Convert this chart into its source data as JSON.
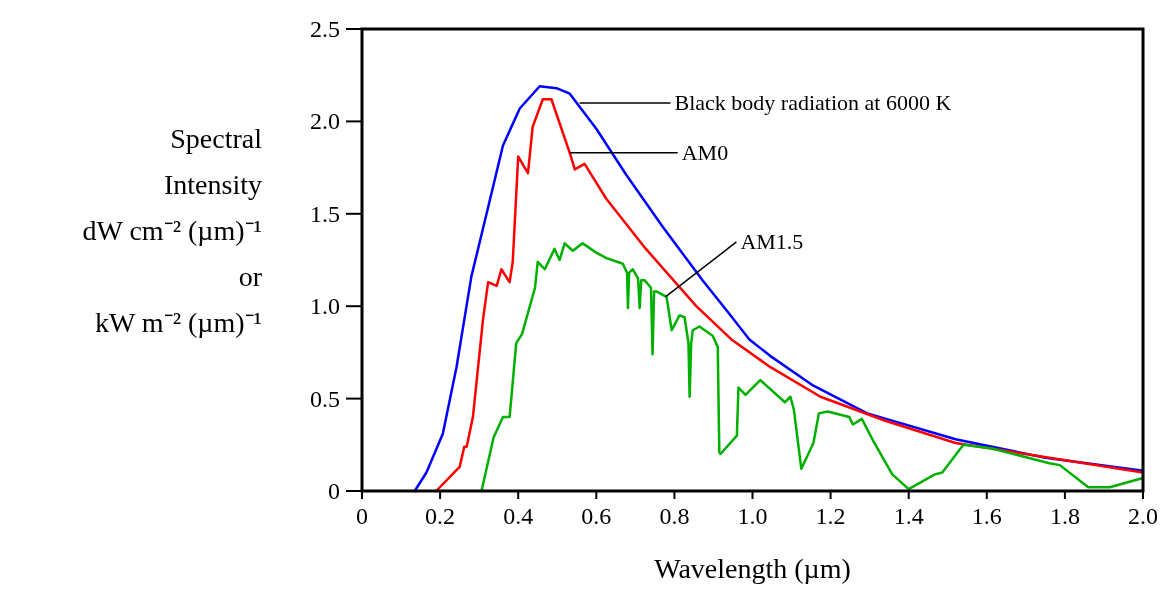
{
  "chart_data": {
    "type": "line",
    "xlabel": "Wavelength (µm)",
    "ylabel": "Spectral\nIntensity\ndW cm⁻² (µm)⁻¹\nor\nkW m⁻² (µm)⁻¹",
    "xlim": [
      0,
      2.0
    ],
    "xticks": [
      0,
      0.2,
      0.4,
      0.6,
      0.8,
      {
        "value": 1,
        "label": "1.0"
      },
      1.2,
      1.4,
      1.6,
      1.8,
      {
        "value": 2,
        "label": "2.0"
      }
    ],
    "ylim": [
      0,
      2.5
    ],
    "yticks": [
      0,
      0.5,
      {
        "value": 1,
        "label": "1.0"
      },
      1.5,
      {
        "value": 2,
        "label": "2.0"
      },
      2.5
    ],
    "grid": false,
    "marker": "none",
    "line_style": "solid",
    "series": [
      {
        "color": "#0000ff",
        "x": [
          0.135,
          0.165,
          0.207,
          0.242,
          0.28,
          0.319,
          0.361,
          0.404,
          0.455,
          0.498,
          0.532,
          0.6,
          0.677,
          0.77,
          0.872,
          0.94,
          0.992,
          1.046,
          1.156,
          1.294,
          1.52,
          1.75,
          2.0
        ],
        "values": [
          0,
          0.1,
          0.31,
          0.67,
          1.16,
          1.5,
          1.87,
          2.07,
          2.19,
          2.18,
          2.15,
          1.96,
          1.71,
          1.43,
          1.14,
          0.96,
          0.82,
          0.73,
          0.57,
          0.42,
          0.28,
          0.18,
          0.11
        ]
      },
      {
        "color": "#ff0000",
        "x": [
          0.19,
          0.25,
          0.262,
          0.268,
          0.284,
          0.31,
          0.323,
          0.345,
          0.357,
          0.378,
          0.386,
          0.4,
          0.425,
          0.437,
          0.463,
          0.485,
          0.532,
          0.545,
          0.57,
          0.626,
          0.727,
          0.856,
          0.946,
          1.046,
          1.174,
          1.34,
          1.52,
          2.0
        ],
        "values": [
          0,
          0.13,
          0.24,
          0.24,
          0.4,
          0.93,
          1.13,
          1.11,
          1.2,
          1.13,
          1.24,
          1.81,
          1.72,
          1.97,
          2.12,
          2.12,
          1.83,
          1.74,
          1.77,
          1.58,
          1.31,
          1.0,
          0.82,
          0.67,
          0.51,
          0.38,
          0.26,
          0.1
        ]
      },
      {
        "color": "#00b000",
        "x": [
          0.306,
          0.337,
          0.361,
          0.378,
          0.395,
          0.41,
          0.443,
          0.45,
          0.468,
          0.493,
          0.506,
          0.519,
          0.54,
          0.565,
          0.6,
          0.626,
          0.668,
          0.679,
          0.681,
          0.684,
          0.693,
          0.707,
          0.711,
          0.715,
          0.724,
          0.74,
          0.744,
          0.748,
          0.754,
          0.78,
          0.793,
          0.813,
          0.826,
          0.836,
          0.839,
          0.843,
          0.847,
          0.864,
          0.898,
          0.911,
          0.915,
          0.918,
          0.96,
          0.964,
          0.982,
          1.02,
          1.083,
          1.097,
          1.106,
          1.125,
          1.156,
          1.17,
          1.192,
          1.248,
          1.257,
          1.28,
          1.312,
          1.358,
          1.4,
          1.467,
          1.486,
          1.54,
          1.614,
          1.76,
          1.787,
          1.86,
          1.915,
          2.0
        ],
        "values": [
          0,
          0.29,
          0.4,
          0.4,
          0.8,
          0.85,
          1.1,
          1.24,
          1.2,
          1.31,
          1.25,
          1.34,
          1.3,
          1.34,
          1.29,
          1.26,
          1.23,
          1.18,
          0.99,
          1.18,
          1.2,
          1.15,
          0.99,
          1.14,
          1.14,
          1.1,
          0.74,
          1.08,
          1.08,
          1.05,
          0.87,
          0.95,
          0.94,
          0.8,
          0.51,
          0.8,
          0.87,
          0.89,
          0.84,
          0.78,
          0.21,
          0.2,
          0.3,
          0.56,
          0.52,
          0.6,
          0.48,
          0.51,
          0.44,
          0.12,
          0.26,
          0.42,
          0.43,
          0.4,
          0.36,
          0.39,
          0.26,
          0.09,
          0.01,
          0.09,
          0.1,
          0.25,
          0.23,
          0.15,
          0.14,
          0.02,
          0.02,
          0.07
        ]
      }
    ],
    "annotations": [
      {
        "text": "Black body radiation at 6000 K",
        "x": 0.557,
        "y": 2.1
      },
      {
        "text": "AM0",
        "x": 0.532,
        "y": 1.83
      },
      {
        "text": "AM1.5",
        "x": 0.777,
        "y": 1.05
      }
    ]
  }
}
